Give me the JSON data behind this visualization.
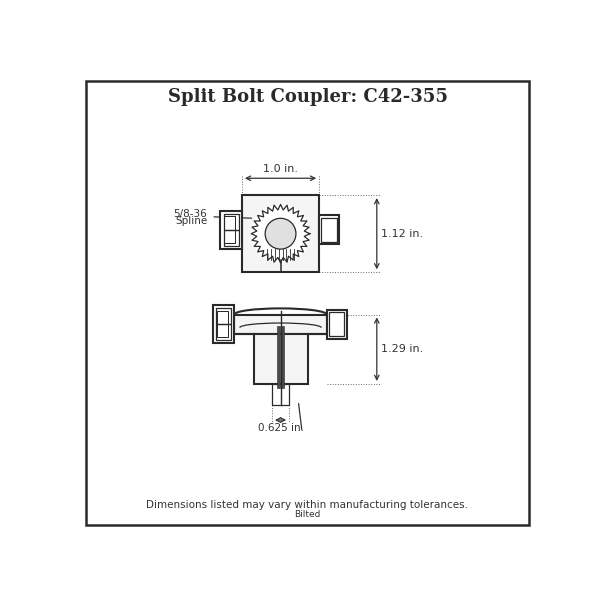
{
  "title": "Split Bolt Coupler: C42-355",
  "line_color": "#2a2a2a",
  "dim_color": "#333333",
  "width_label": "1.0 in.",
  "height_label_top": "1.12 in.",
  "height_label_bottom": "1.29 in.",
  "bore_label": "0.625 in.",
  "spline_label_line1": "5/8-36",
  "spline_label_line2": "Spline",
  "footer": "Dimensions listed may vary within manufacturing tolerances.",
  "footer2": "Bilted",
  "n_spline_teeth": 28,
  "r_spline_outer": 38,
  "r_spline_inner": 28,
  "r_bore": 20
}
